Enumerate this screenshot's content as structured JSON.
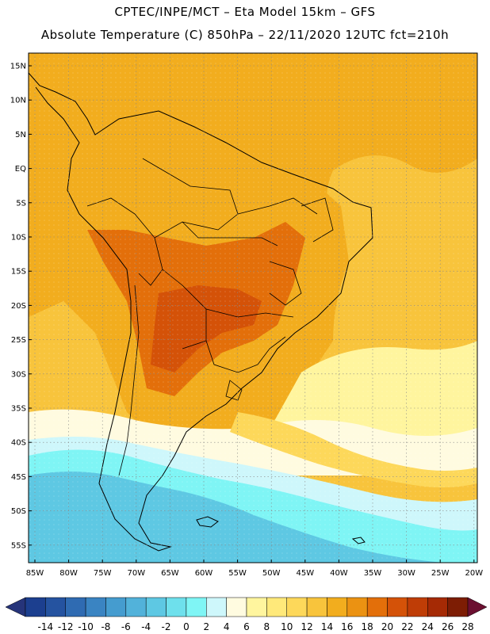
{
  "header": {
    "title_line1": "CPTEC/INPE/MCT –  Eta Model 15km – GFS",
    "title_line2": "Absolute Temperature (C) 850hPa – 22/11/2020 12UTC fct=210h"
  },
  "axes": {
    "lat_labels": [
      "15N",
      "10N",
      "5N",
      "EQ",
      "5S",
      "10S",
      "15S",
      "20S",
      "25S",
      "30S",
      "35S",
      "40S",
      "45S",
      "50S",
      "55S"
    ],
    "lon_labels": [
      "85W",
      "80W",
      "75W",
      "70W",
      "65W",
      "60W",
      "55W",
      "50W",
      "45W",
      "40W",
      "35W",
      "30W",
      "25W",
      "20W"
    ]
  },
  "colorbar": {
    "labels": [
      "-14",
      "-12",
      "-10",
      "-8",
      "-6",
      "-4",
      "-2",
      "0",
      "2",
      "4",
      "6",
      "8",
      "10",
      "12",
      "14",
      "16",
      "18",
      "20",
      "22",
      "24",
      "26",
      "28"
    ],
    "colors": [
      "#1c3f8f",
      "#2553a0",
      "#2f6bb2",
      "#3a84c2",
      "#459ccf",
      "#52b2da",
      "#5ec8e3",
      "#6ee0ec",
      "#7ff5f5",
      "#cef7fb",
      "#fffbe0",
      "#fff59e",
      "#ffe97a",
      "#fdd85a",
      "#f8c43c",
      "#f2ad1e",
      "#eb9212",
      "#e36f0a",
      "#d45208",
      "#bf3d06",
      "#a52a05",
      "#7d1d04"
    ],
    "end_left": "#26347a",
    "end_right": "#6b0f30"
  },
  "map_colors": {
    "ocean_cold": "#5ec8e3",
    "ocean_cyan": "#7ff5f5",
    "ocean_pale": "#cef7fb",
    "ocean_cream": "#fffbe0",
    "ocean_lightyellow": "#fff59e",
    "ocean_yellow": "#fdd85a",
    "ocean_gold": "#f8c43c",
    "orange": "#f2ad1e",
    "dark_orange": "#e36f0a",
    "hot": "#d45208",
    "hottest": "#bf3d06"
  }
}
